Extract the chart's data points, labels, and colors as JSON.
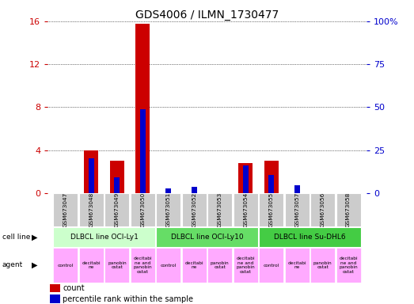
{
  "title": "GDS4006 / ILMN_1730477",
  "samples": [
    "GSM673047",
    "GSM673048",
    "GSM673049",
    "GSM673050",
    "GSM673051",
    "GSM673052",
    "GSM673053",
    "GSM673054",
    "GSM673055",
    "GSM673057",
    "GSM673056",
    "GSM673058"
  ],
  "count_values": [
    0,
    4.0,
    3.0,
    15.8,
    0,
    0,
    0,
    2.8,
    3.0,
    0,
    0,
    0
  ],
  "percentile_values": [
    0,
    20.0,
    9.0,
    49.0,
    2.5,
    3.5,
    0,
    16.0,
    10.5,
    4.5,
    0,
    0
  ],
  "ylim_left": [
    0,
    16
  ],
  "ylim_right": [
    0,
    100
  ],
  "yticks_left": [
    0,
    4,
    8,
    12,
    16
  ],
  "yticks_right": [
    0,
    25,
    50,
    75,
    100
  ],
  "ytick_labels_right": [
    "0",
    "25",
    "50",
    "75",
    "100%"
  ],
  "bar_color_count": "#cc0000",
  "bar_color_percentile": "#0000cc",
  "cell_lines": [
    {
      "label": "DLBCL line OCI-Ly1",
      "start": 0,
      "end": 4,
      "color": "#ccffcc"
    },
    {
      "label": "DLBCL line OCI-Ly10",
      "start": 4,
      "end": 8,
      "color": "#66dd66"
    },
    {
      "label": "DLBCL line Su-DHL6",
      "start": 8,
      "end": 12,
      "color": "#44cc44"
    }
  ],
  "agents": [
    {
      "label": "control",
      "idx": 0
    },
    {
      "label": "decitabi\nne",
      "idx": 1
    },
    {
      "label": "panobin\nostat",
      "idx": 2
    },
    {
      "label": "decitabi\nne and\npanobin\nostat",
      "idx": 3
    },
    {
      "label": "control",
      "idx": 4
    },
    {
      "label": "decitabi\nne",
      "idx": 5
    },
    {
      "label": "panobin\nostat",
      "idx": 6
    },
    {
      "label": "decitabi\nne and\npanobin\nostat",
      "idx": 7
    },
    {
      "label": "control",
      "idx": 8
    },
    {
      "label": "decitabi\nne",
      "idx": 9
    },
    {
      "label": "panobin\nostat",
      "idx": 10
    },
    {
      "label": "decitabi\nne and\npanobin\nostat",
      "idx": 11
    }
  ],
  "agent_color": "#ffaaff",
  "legend_count_label": "count",
  "legend_percentile_label": "percentile rank within the sample",
  "left_axis_color": "#cc0000",
  "right_axis_color": "#0000cc",
  "grid_color": "#000000",
  "tick_bg_color": "#cccccc",
  "count_bar_width": 0.55,
  "pct_bar_width": 0.22
}
